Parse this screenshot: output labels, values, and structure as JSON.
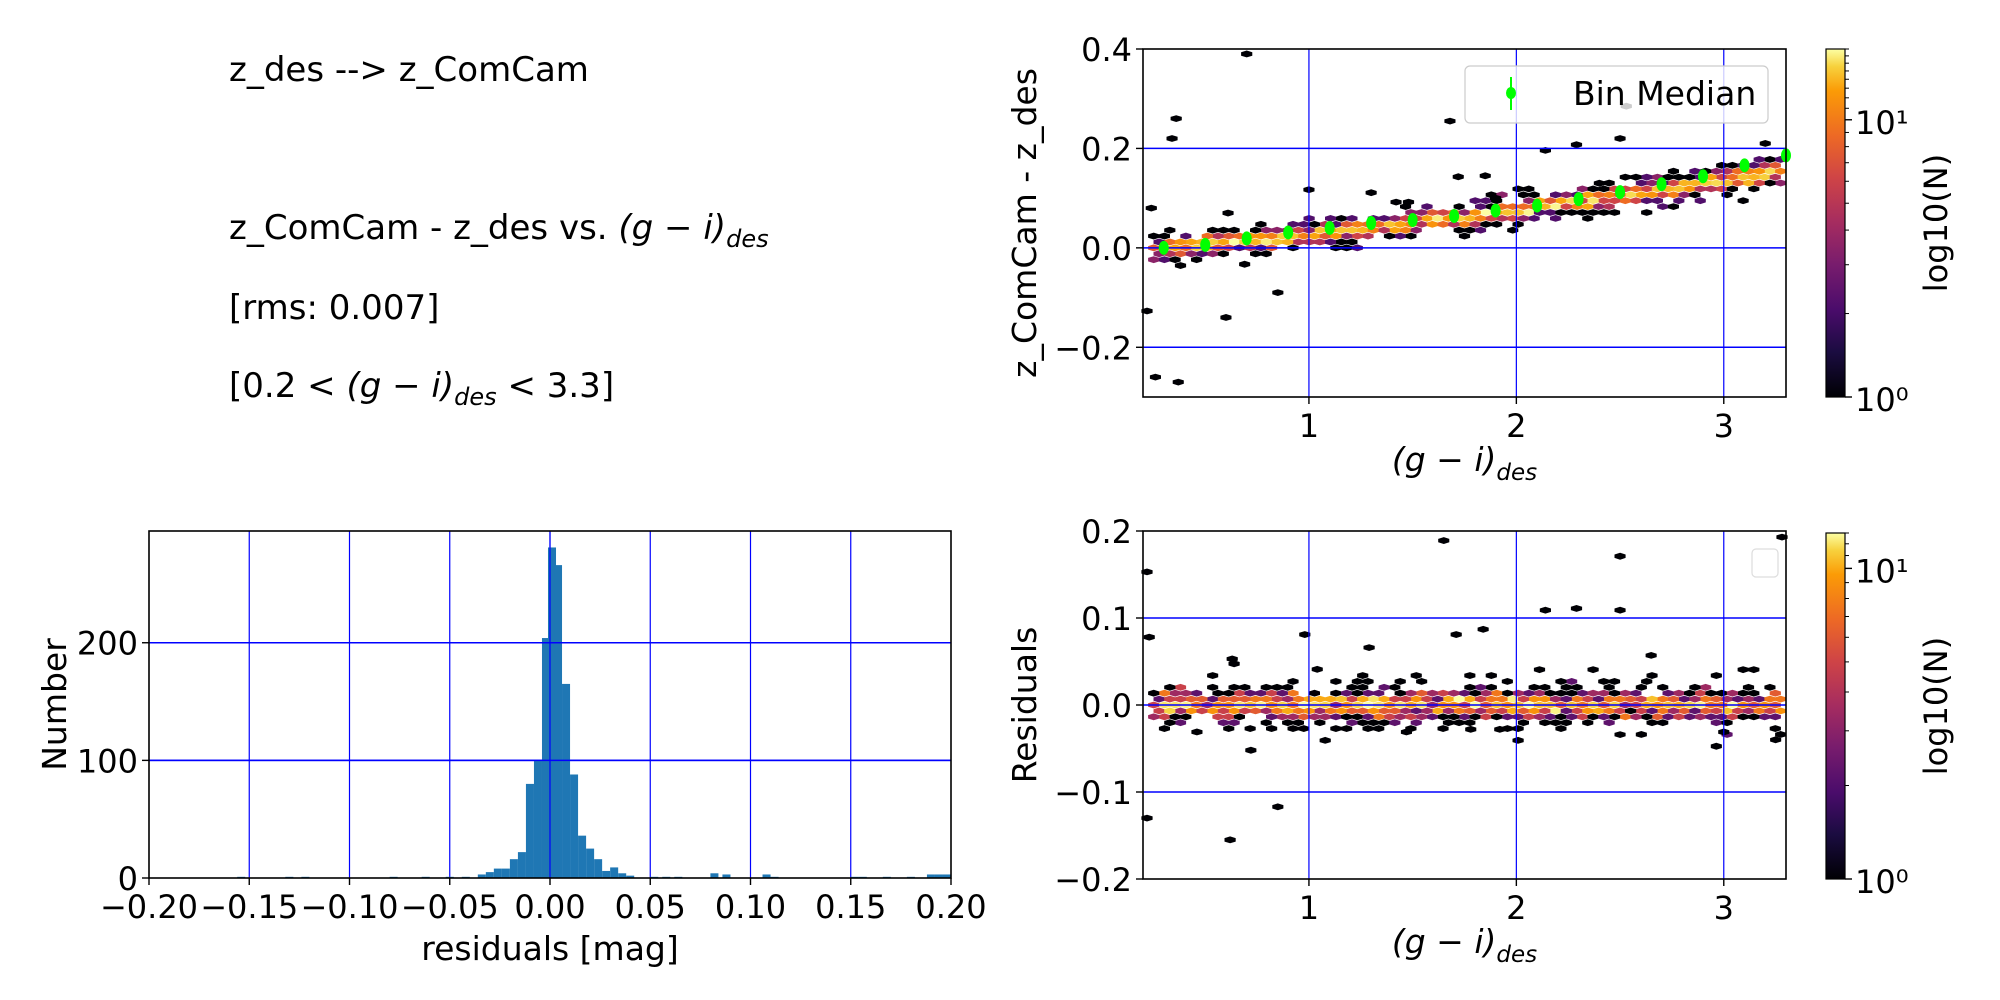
{
  "text_panel": {
    "title": "z_des --> z_ComCam",
    "fit_label_prefix": "z_ComCam - z_des vs. ",
    "color_label": "(g − i)",
    "color_sub": "des",
    "rms_label": "[rms: 0.007]",
    "range_prefix": "[0.2 < ",
    "range_suffix": " < 3.3]"
  },
  "colors": {
    "grid": "#0000ff",
    "hist_bar": "#1f77b4",
    "median": "#00ff00"
  },
  "chart_data": [
    {
      "id": "hist",
      "type": "bar",
      "title": "",
      "xlabel": "residuals [mag]",
      "ylabel": "Number",
      "xlim": [
        -0.2,
        0.2
      ],
      "ylim": [
        0,
        295
      ],
      "grid": true,
      "xticks": [
        -0.2,
        -0.15,
        -0.1,
        -0.05,
        0.0,
        0.05,
        0.1,
        0.15,
        0.2
      ],
      "xtick_labels": [
        "−0.20",
        "−0.15",
        "−0.10",
        "−0.05",
        "0.00",
        "0.05",
        "0.10",
        "0.15",
        "0.20"
      ],
      "yticks": [
        0,
        100,
        200
      ],
      "ytick_labels": [
        "0",
        "100",
        "200"
      ],
      "bin_width": 0.004,
      "bins": [
        {
          "left": -0.156,
          "count": 1
        },
        {
          "left": -0.132,
          "count": 1
        },
        {
          "left": -0.124,
          "count": 1
        },
        {
          "left": -0.08,
          "count": 1
        },
        {
          "left": -0.064,
          "count": 1
        },
        {
          "left": -0.052,
          "count": 1
        },
        {
          "left": -0.044,
          "count": 1
        },
        {
          "left": -0.036,
          "count": 3
        },
        {
          "left": -0.032,
          "count": 5
        },
        {
          "left": -0.028,
          "count": 8
        },
        {
          "left": -0.024,
          "count": 8
        },
        {
          "left": -0.02,
          "count": 16
        },
        {
          "left": -0.016,
          "count": 22
        },
        {
          "left": -0.012,
          "count": 80
        },
        {
          "left": -0.008,
          "count": 100
        },
        {
          "left": -0.004,
          "count": 204
        },
        {
          "left": -0.001,
          "count": 281
        },
        {
          "left": 0.002,
          "count": 266
        },
        {
          "left": 0.006,
          "count": 165
        },
        {
          "left": 0.01,
          "count": 88
        },
        {
          "left": 0.014,
          "count": 36
        },
        {
          "left": 0.018,
          "count": 25
        },
        {
          "left": 0.022,
          "count": 16
        },
        {
          "left": 0.026,
          "count": 6
        },
        {
          "left": 0.03,
          "count": 9
        },
        {
          "left": 0.034,
          "count": 4
        },
        {
          "left": 0.038,
          "count": 2
        },
        {
          "left": 0.05,
          "count": 1
        },
        {
          "left": 0.056,
          "count": 1
        },
        {
          "left": 0.062,
          "count": 1
        },
        {
          "left": 0.08,
          "count": 4
        },
        {
          "left": 0.086,
          "count": 3
        },
        {
          "left": 0.106,
          "count": 3
        },
        {
          "left": 0.11,
          "count": 1
        },
        {
          "left": 0.15,
          "count": 1
        },
        {
          "left": 0.154,
          "count": 1
        },
        {
          "left": 0.166,
          "count": 1
        },
        {
          "left": 0.178,
          "count": 1
        },
        {
          "left": 0.188,
          "count": 3
        },
        {
          "left": 0.192,
          "count": 3
        },
        {
          "left": 0.196,
          "count": 3
        }
      ]
    },
    {
      "id": "fit",
      "type": "heatmap",
      "subtype": "hexbin",
      "xlabel_main": "(g − i)",
      "xlabel_sub": "des",
      "ylabel": "z_ComCam - z_des",
      "xlim": [
        0.2,
        3.3
      ],
      "ylim": [
        -0.3,
        0.4
      ],
      "grid": true,
      "xticks": [
        1,
        2,
        3
      ],
      "xtick_labels": [
        "1",
        "2",
        "3"
      ],
      "yticks": [
        -0.2,
        0.0,
        0.2,
        0.4
      ],
      "ytick_labels": [
        "−0.2",
        "0.0",
        "0.2",
        "0.4"
      ],
      "colorbar": {
        "label": "log10(N)",
        "scale": "log",
        "min": 1,
        "max": 18,
        "tick_labels": [
          "10⁰",
          "10¹"
        ],
        "cmap": "inferno"
      },
      "legend": {
        "position": "upper-right",
        "entries": [
          "Bin Median"
        ]
      },
      "trend": {
        "intercept": -0.012,
        "slope": 0.034,
        "curve": 0.0052,
        "scatter": 0.008
      },
      "bin_median": {
        "x": [
          0.3,
          0.5,
          0.7,
          0.9,
          1.1,
          1.3,
          1.5,
          1.7,
          1.9,
          2.1,
          2.3,
          2.5,
          2.7,
          2.9,
          3.1,
          3.3
        ],
        "y": [
          0.0,
          0.006,
          0.019,
          0.031,
          0.04,
          0.05,
          0.056,
          0.064,
          0.075,
          0.085,
          0.098,
          0.112,
          0.128,
          0.144,
          0.166,
          0.186
        ]
      },
      "outliers": [
        [
          0.7,
          0.39
        ],
        [
          0.36,
          0.26
        ],
        [
          0.34,
          0.22
        ],
        [
          0.24,
          0.08
        ],
        [
          0.2,
          -0.127
        ],
        [
          0.26,
          -0.26
        ],
        [
          0.37,
          -0.27
        ],
        [
          0.6,
          -0.14
        ],
        [
          0.69,
          -0.033
        ],
        [
          0.85,
          -0.09
        ],
        [
          1.68,
          0.255
        ],
        [
          2.53,
          0.285
        ],
        [
          2.5,
          0.22
        ],
        [
          2.29,
          0.2075
        ],
        [
          2.14,
          0.196
        ],
        [
          1.85,
          0.145
        ],
        [
          1.72,
          0.143
        ],
        [
          1.0,
          0.117
        ],
        [
          1.3,
          0.111
        ],
        [
          0.61,
          0.07
        ],
        [
          3.2,
          0.21
        ],
        [
          1.42,
          0.092
        ],
        [
          1.48,
          0.092
        ],
        [
          1.9,
          0.1
        ],
        [
          2.4,
          0.13
        ]
      ]
    },
    {
      "id": "resid",
      "type": "heatmap",
      "subtype": "hexbin",
      "xlabel_main": "(g − i)",
      "xlabel_sub": "des",
      "ylabel": "Residuals",
      "xlim": [
        0.2,
        3.3
      ],
      "ylim": [
        -0.2,
        0.2
      ],
      "grid": true,
      "xticks": [
        1,
        2,
        3
      ],
      "xtick_labels": [
        "1",
        "2",
        "3"
      ],
      "yticks": [
        -0.2,
        -0.1,
        0.0,
        0.1,
        0.2
      ],
      "ytick_labels": [
        "−0.2",
        "−0.1",
        "0.0",
        "0.1",
        "0.2"
      ],
      "colorbar": {
        "label": "log10(N)",
        "scale": "log",
        "min": 1,
        "max": 13,
        "tick_labels": [
          "10⁰",
          "10¹"
        ],
        "cmap": "inferno"
      },
      "legend": {
        "position": "upper-right",
        "entries": []
      },
      "scatter": 0.007,
      "outliers": [
        [
          1.65,
          0.189
        ],
        [
          2.5,
          0.171
        ],
        [
          2.14,
          0.109
        ],
        [
          2.29,
          0.111
        ],
        [
          2.5,
          0.109
        ],
        [
          1.84,
          0.087
        ],
        [
          1.71,
          0.081
        ],
        [
          0.98,
          0.081
        ],
        [
          0.23,
          0.078
        ],
        [
          1.29,
          0.066
        ],
        [
          0.63,
          0.053
        ],
        [
          2.65,
          0.057
        ],
        [
          1.04,
          0.041
        ],
        [
          3.3,
          0.193
        ],
        [
          0.2,
          0.153
        ],
        [
          0.2,
          -0.13
        ],
        [
          0.62,
          -0.155
        ],
        [
          0.85,
          -0.117
        ],
        [
          0.72,
          -0.052
        ],
        [
          2.5,
          -0.034
        ],
        [
          0.46,
          -0.031
        ],
        [
          1.47,
          -0.031
        ],
        [
          3.0,
          -0.031
        ],
        [
          3.25,
          -0.04
        ],
        [
          1.92,
          -0.028
        ],
        [
          1.78,
          -0.028
        ]
      ]
    }
  ]
}
